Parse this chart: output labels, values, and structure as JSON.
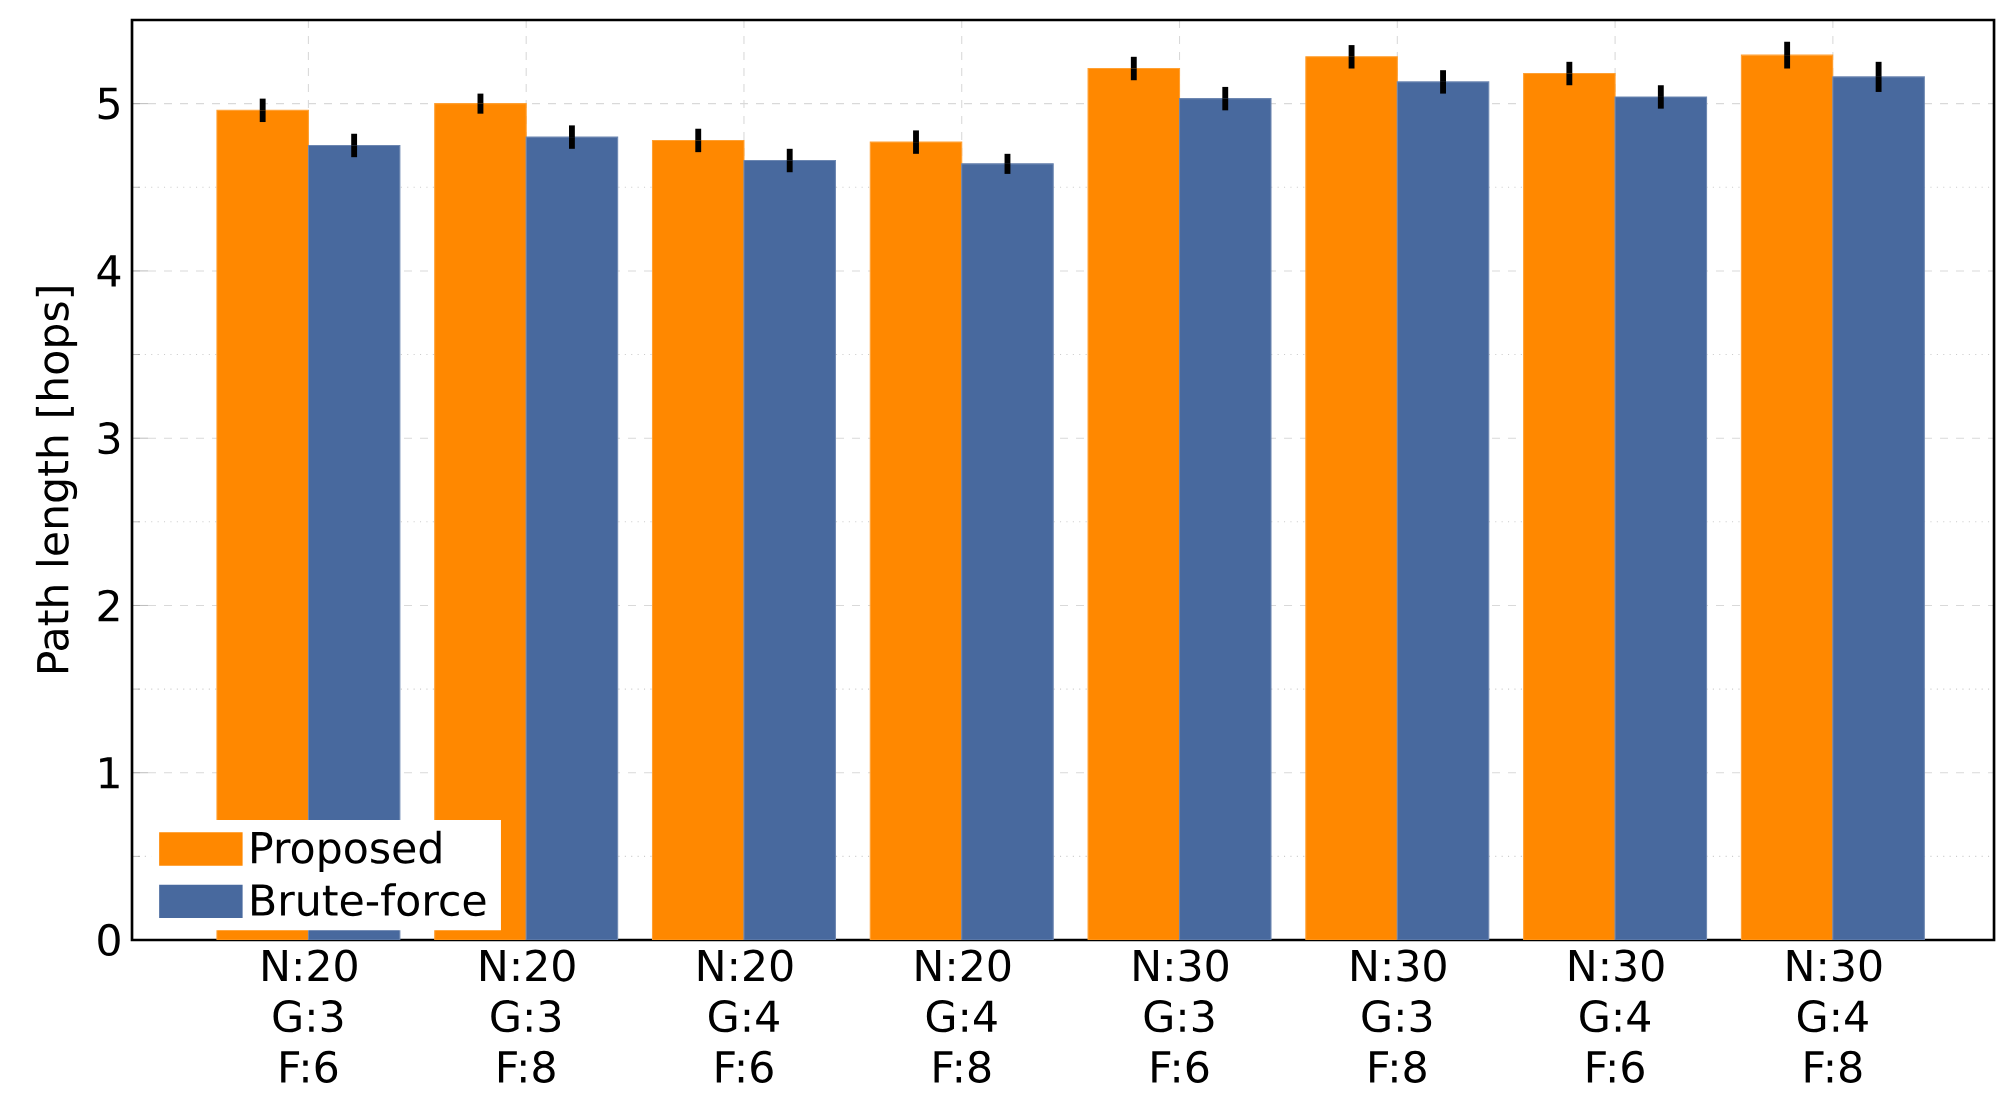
{
  "chart_data": {
    "type": "bar",
    "ylabel": "Path length [hops]",
    "categories": [
      "N:20 G:3 F:6",
      "N:20 G:3 F:8",
      "N:20 G:4 F:6",
      "N:20 G:4 F:8",
      "N:30 G:3 F:6",
      "N:30 G:3 F:8",
      "N:30 G:4 F:6",
      "N:30 G:4 F:8"
    ],
    "series": [
      {
        "name": "Proposed",
        "color": "#ff8800",
        "values": [
          4.96,
          5.0,
          4.78,
          4.77,
          5.21,
          5.28,
          5.18,
          5.29
        ],
        "errors": [
          0.07,
          0.06,
          0.07,
          0.07,
          0.07,
          0.07,
          0.07,
          0.08
        ]
      },
      {
        "name": "Brute-force",
        "color": "#48699e",
        "values": [
          4.75,
          4.8,
          4.66,
          4.64,
          5.03,
          5.13,
          5.04,
          5.16
        ],
        "errors": [
          0.07,
          0.07,
          0.07,
          0.06,
          0.07,
          0.07,
          0.07,
          0.09
        ]
      }
    ],
    "ylim": [
      0,
      5.5
    ],
    "yticks": [
      0,
      1,
      2,
      3,
      4,
      5
    ],
    "grid": true,
    "legend": "bottom left"
  }
}
